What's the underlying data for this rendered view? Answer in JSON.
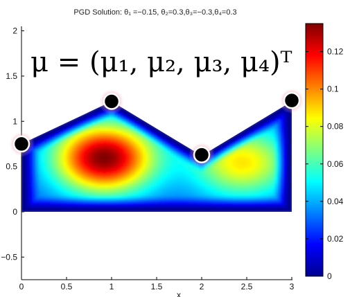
{
  "chart_data": {
    "type": "heatmap",
    "title": "PGD Solution: θ₁ =−0.15, θ₂=0.3,θ₃=−0.3,θ₄=0.3",
    "annotation": "μ = (μ₁, μ₂, μ₃, μ₄)ᵀ",
    "xlabel": "x",
    "ylabel": "",
    "xlim": [
      0,
      3
    ],
    "ylim": [
      -0.75,
      2.05
    ],
    "x_ticks": [
      0,
      0.5,
      1,
      1.5,
      2,
      2.5,
      3
    ],
    "x_tick_labels": [
      "0",
      "0.5",
      "1",
      "1.5",
      "2",
      "2.5",
      "3"
    ],
    "y_ticks": [
      -0.5,
      0,
      0.5,
      1,
      1.5,
      2
    ],
    "y_tick_labels": [
      "−0.5",
      "0",
      "0.5",
      "1",
      "1.5",
      "2"
    ],
    "domain_polygon": [
      [
        0,
        0
      ],
      [
        3,
        0
      ],
      [
        3,
        1.22
      ],
      [
        2,
        0.62
      ],
      [
        1,
        1.22
      ],
      [
        0,
        0.75
      ]
    ],
    "control_points": [
      {
        "x": 0,
        "y": 0.75
      },
      {
        "x": 1,
        "y": 1.22
      },
      {
        "x": 2,
        "y": 0.63
      },
      {
        "x": 3,
        "y": 1.23
      }
    ],
    "colorbar": {
      "colormap": "jet",
      "min": 0,
      "max": 0.135,
      "ticks": [
        0,
        0.02,
        0.04,
        0.06,
        0.08,
        0.1,
        0.12
      ],
      "tick_labels": [
        "0",
        "0.02",
        "0.04",
        "0.06",
        "0.08",
        "0.1",
        "0.12"
      ]
    },
    "field_peak": {
      "x": 0.92,
      "y": 0.6,
      "value": 0.135
    },
    "grid": false
  },
  "colors": {
    "point_fill": "#000000",
    "point_stroke": "#ffffff",
    "point_glow": "#e23a50"
  }
}
